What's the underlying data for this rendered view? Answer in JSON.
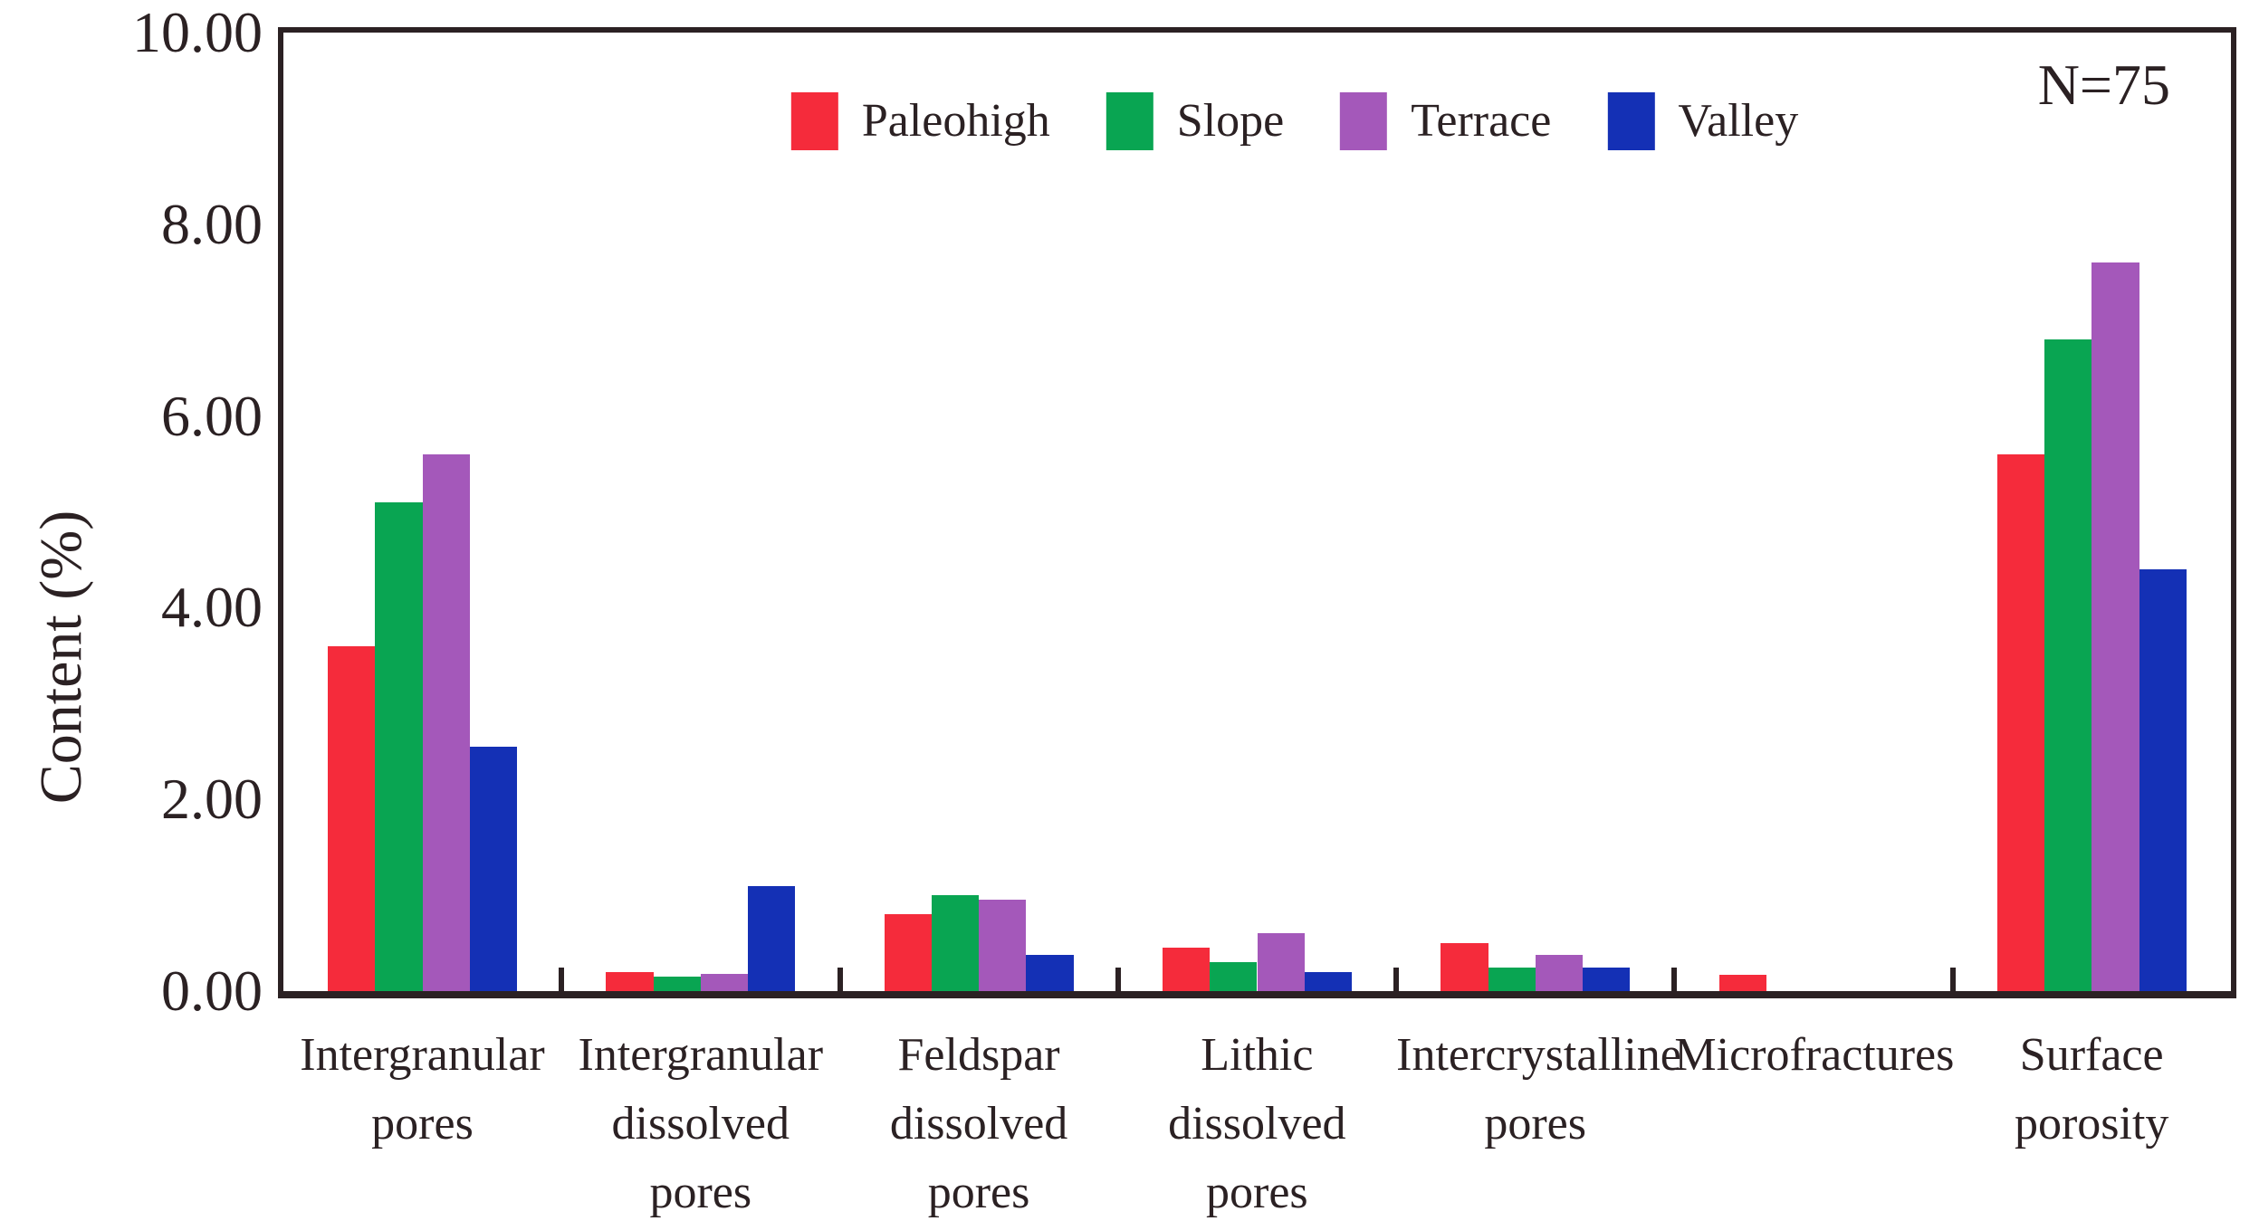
{
  "chart_data": {
    "type": "bar",
    "title": "",
    "ylabel": "Content (%)",
    "xlabel": "",
    "annotation": "N=75",
    "categories": [
      "Intergranular pores",
      "Intergranular dissolved pores",
      "Feldspar dissolved pores",
      "Lithic dissolved pores",
      "Intercrystalline pores",
      "Microfractures",
      "Surface porosity"
    ],
    "category_lines": [
      [
        "Intergranular",
        "pores"
      ],
      [
        "Intergranular",
        "dissolved",
        "pores"
      ],
      [
        "Feldspar",
        "dissolved",
        "pores"
      ],
      [
        "Lithic",
        "dissolved",
        "pores"
      ],
      [
        "Intercrystalline",
        "pores"
      ],
      [
        "Microfractures"
      ],
      [
        "Surface",
        "porosity"
      ]
    ],
    "series": [
      {
        "name": "Paleohigh",
        "color": "#f52b3b",
        "values": [
          3.6,
          0.2,
          0.8,
          0.45,
          0.5,
          0.17,
          5.6
        ]
      },
      {
        "name": "Slope",
        "color": "#09a552",
        "values": [
          5.1,
          0.15,
          1.0,
          0.3,
          0.25,
          0,
          6.8
        ]
      },
      {
        "name": "Terrace",
        "color": "#a458ba",
        "values": [
          5.6,
          0.18,
          0.95,
          0.6,
          0.38,
          0,
          7.6
        ]
      },
      {
        "name": "Valley",
        "color": "#1430b5",
        "values": [
          2.55,
          1.1,
          0.38,
          0.2,
          0.25,
          0,
          4.4
        ]
      }
    ],
    "ylim": [
      0,
      10
    ],
    "yticks": [
      0,
      2,
      4,
      6,
      8,
      10
    ],
    "ytick_labels": [
      "0.00",
      "2.00",
      "4.00",
      "6.00",
      "8.00",
      "10.00"
    ],
    "legend_position": "top-center",
    "grid": false
  },
  "colors": {
    "text": "#2b2123",
    "axis": "#2b2123",
    "background": "#ffffff"
  }
}
